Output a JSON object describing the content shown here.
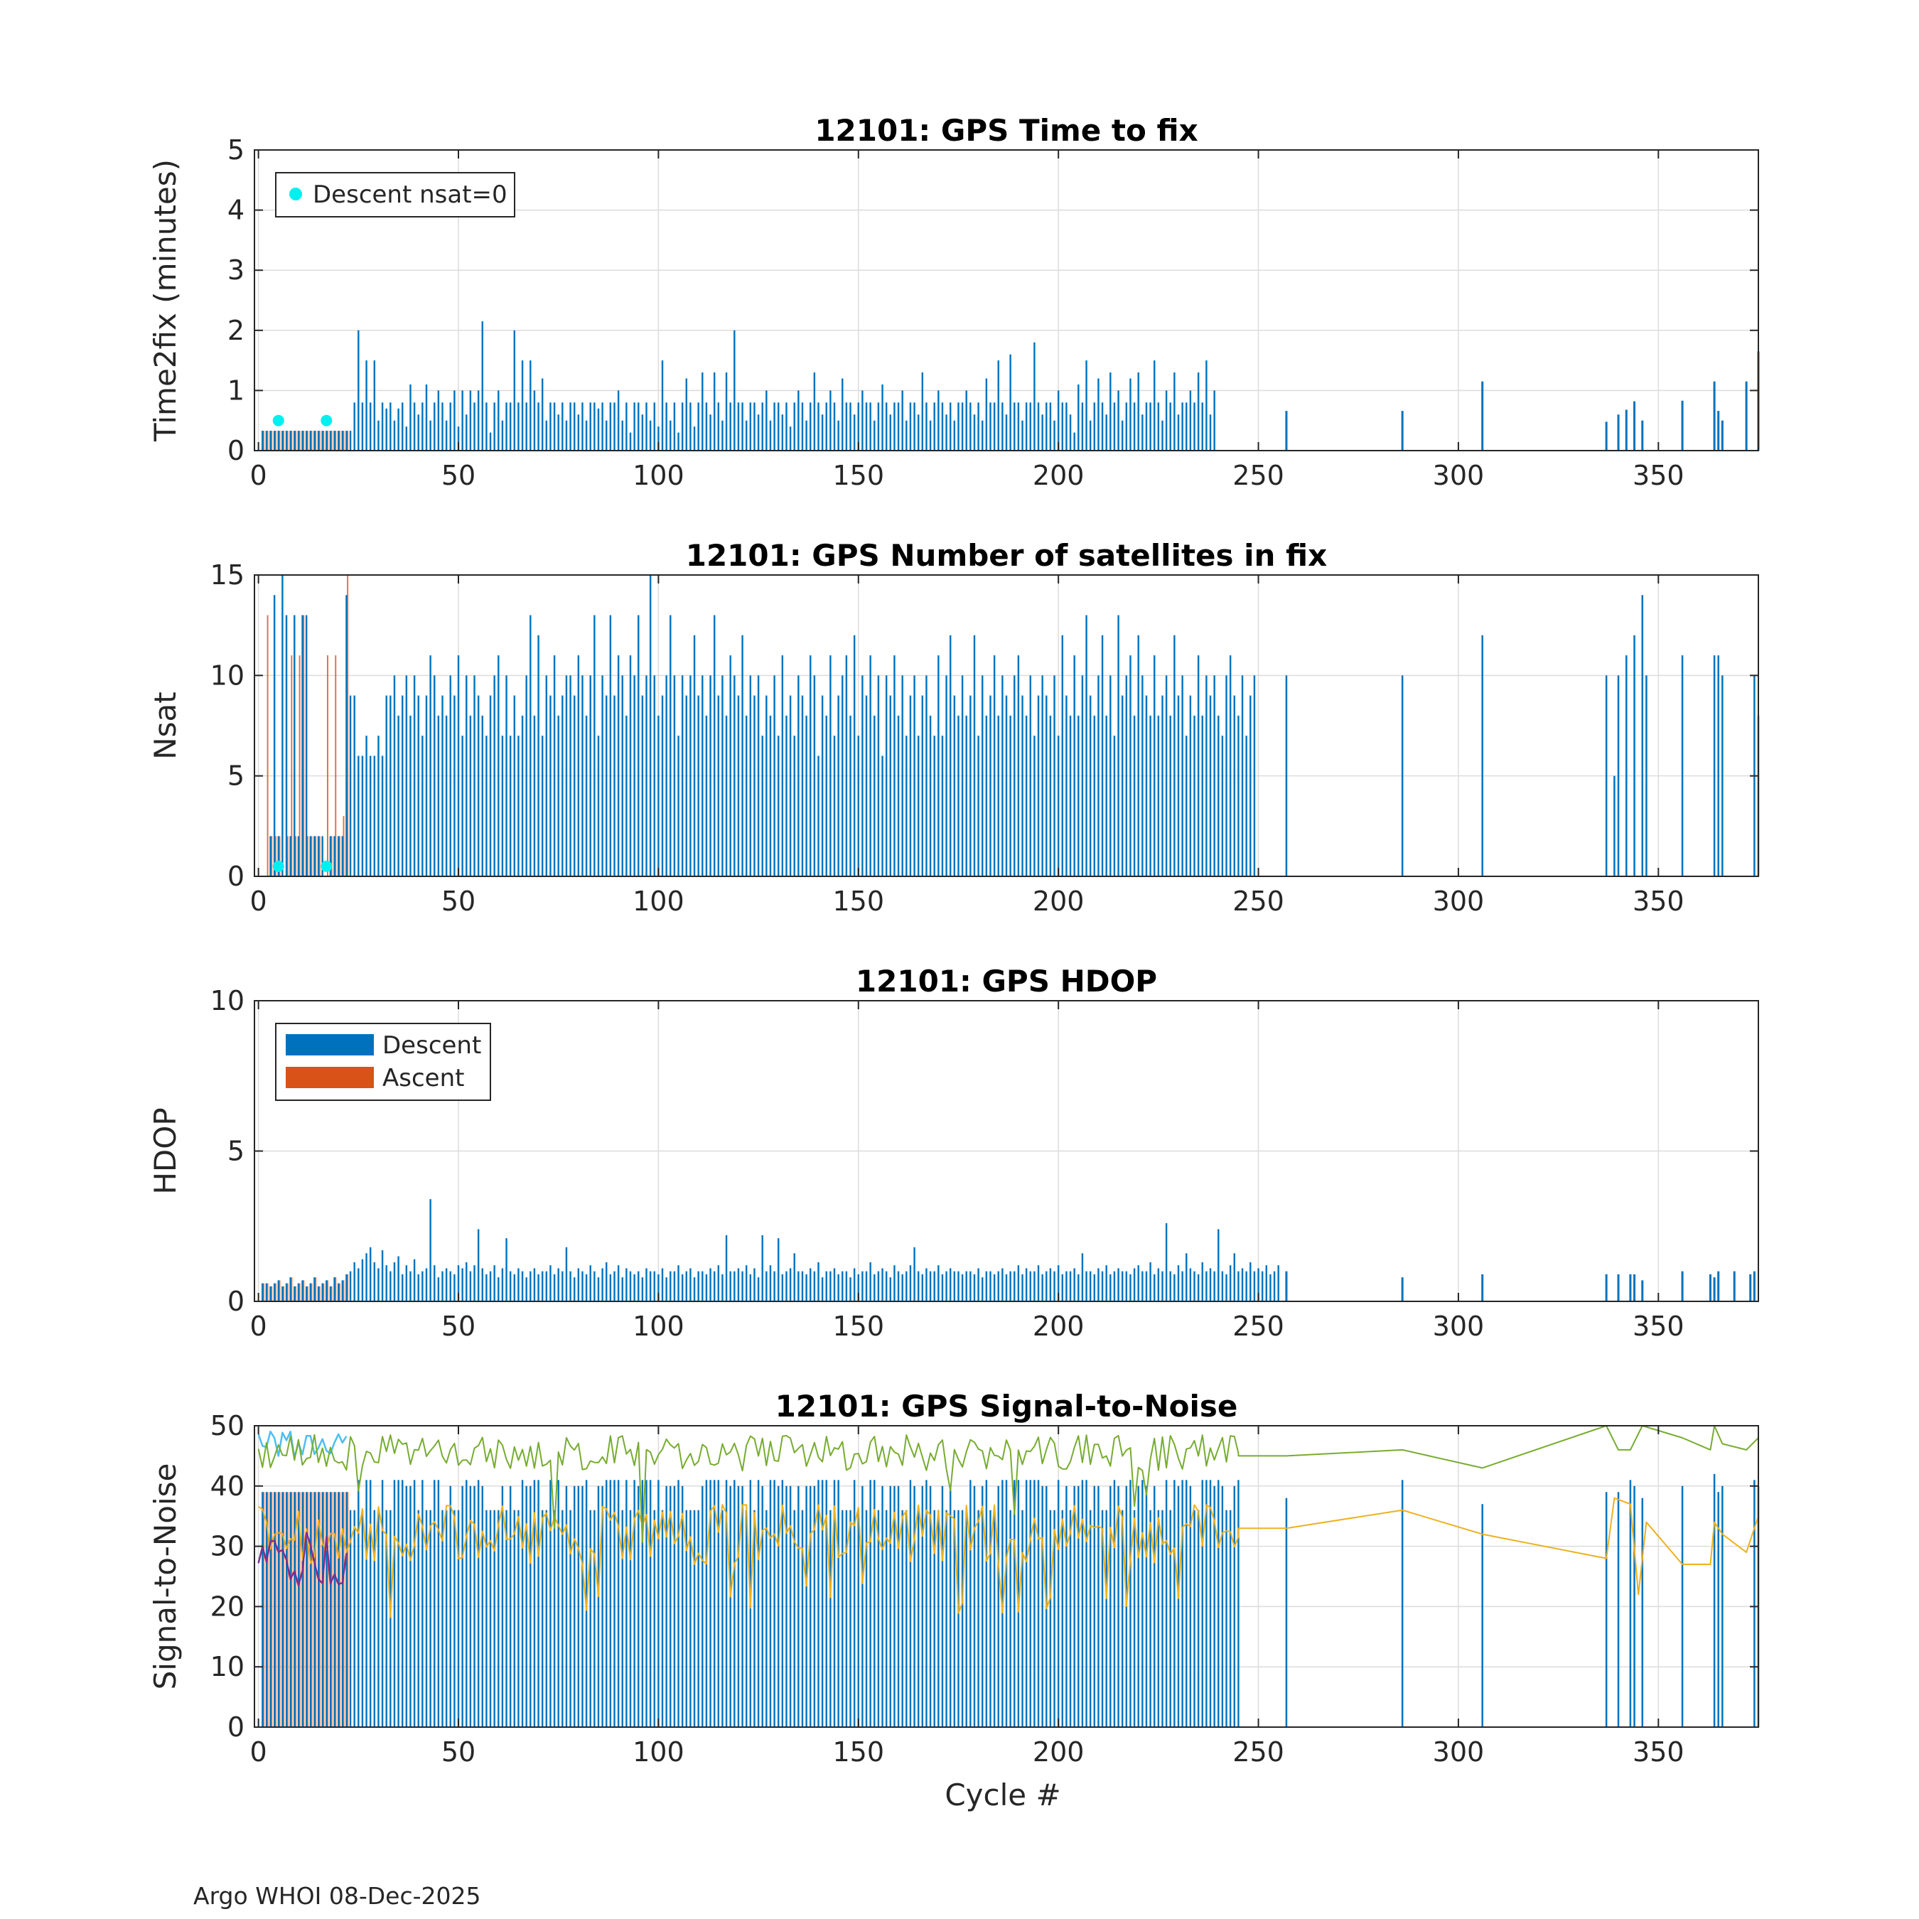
{
  "figure": {
    "footer": "Argo WHOI 08-Dec-2025",
    "xlabel": "Cycle #",
    "xlim": [
      -1,
      375
    ],
    "xticks": [
      0,
      50,
      100,
      150,
      200,
      250,
      300,
      350
    ],
    "colors": {
      "descent": "#0072BD",
      "ascent": "#D95319",
      "cyan": "#00F0F0",
      "snr_green": "#77AC30",
      "snr_yellow": "#EDB120",
      "snr_lightblue": "#4DBEEE",
      "snr_purple": "#7E2F8E",
      "grid": "#DCDCDC",
      "axis": "#262626"
    }
  },
  "chart_data": [
    {
      "id": "time2fix",
      "type": "bar",
      "title": "12101: GPS Time to fix",
      "ylabel": "Time2fix (minutes)",
      "ylim": [
        0,
        5
      ],
      "yticks": [
        0,
        1,
        2,
        3,
        4,
        5
      ],
      "legend": [
        {
          "label": "Descent nsat=0",
          "marker": "dot",
          "color_key": "cyan"
        }
      ],
      "legend_position": "top-left",
      "early_ascent_cycles": [
        1,
        22
      ],
      "early_value": 0.33,
      "descent_values": [
        0.33,
        0.33,
        0.33,
        0.33,
        0.33,
        0.33,
        0.33,
        0.33,
        0.33,
        0.33,
        0.33,
        0.33,
        0.33,
        0.33,
        0.33,
        0.33,
        0.33,
        0.33,
        0.33,
        0.33,
        0.33,
        0.33,
        0.33,
        0.8,
        2.0,
        0.8,
        1.5,
        0.8,
        1.5,
        0.5,
        0.8,
        0.7,
        0.8,
        0.5,
        0.7,
        0.8,
        0.4,
        1.1,
        0.8,
        0.6,
        0.8,
        1.1,
        0.5,
        0.8,
        1.0,
        0.8,
        0.5,
        0.8,
        1.0,
        0.4,
        1.0,
        0.6,
        1.0,
        0.8,
        1.0,
        2.15,
        0.8,
        0.3,
        0.8,
        1.0,
        0.5,
        0.8,
        0.8,
        2.0,
        0.8,
        1.5,
        0.8,
        1.5,
        1.0,
        0.8,
        1.2,
        0.5,
        0.8,
        0.8,
        0.6,
        0.8,
        0.5,
        0.8,
        0.8,
        0.6,
        0.8,
        0.5,
        0.8,
        0.8,
        0.7,
        0.8,
        0.5,
        0.8,
        0.8,
        1.0,
        0.5,
        0.8,
        0.3,
        0.8,
        0.8,
        0.6,
        0.8,
        0.5,
        0.8,
        0.4,
        1.5,
        0.8,
        0.5,
        0.8,
        0.3,
        0.8,
        1.2,
        0.8,
        0.4,
        0.8,
        1.3,
        0.8,
        0.6,
        1.3,
        0.8,
        0.5,
        1.3,
        0.8,
        2.0,
        0.8,
        0.8,
        0.5,
        0.8,
        0.8,
        0.6,
        0.8,
        1.0,
        0.5,
        0.8,
        0.8,
        0.6,
        0.8,
        0.4,
        0.8,
        1.0,
        0.8,
        0.5,
        0.8,
        1.3,
        0.8,
        0.6,
        0.8,
        1.0,
        0.8,
        0.5,
        1.2,
        0.8,
        0.8,
        0.6,
        0.8,
        1.0,
        0.8,
        0.8,
        0.5,
        0.8,
        1.1,
        0.8,
        0.6,
        0.8,
        0.8,
        1.0,
        0.5,
        0.8,
        0.8,
        0.6,
        1.3,
        0.8,
        0.5,
        0.8,
        1.0,
        0.8,
        0.6,
        0.8,
        0.5,
        0.8,
        0.8,
        1.0,
        0.8,
        0.6,
        0.8,
        0.5,
        1.2,
        0.8,
        0.8,
        1.5,
        0.8,
        0.6,
        1.6,
        0.8,
        0.8,
        0.5,
        0.8,
        0.8,
        1.8,
        0.8,
        0.6,
        0.8,
        0.8,
        0.5,
        1.0,
        0.8,
        0.8,
        0.6,
        0.3,
        1.1,
        0.8,
        1.5,
        0.5,
        0.8,
        1.2,
        0.8,
        0.6,
        1.3,
        0.8,
        1.0,
        0.5,
        0.8,
        1.2,
        0.8,
        1.3,
        0.6,
        0.8,
        0.8,
        1.5,
        0.8,
        0.5,
        1.0,
        0.8,
        1.3,
        0.6,
        0.8,
        0.8,
        1.0,
        0.8,
        1.3,
        0.8,
        1.5,
        0.6,
        1.0
      ],
      "late_descent": [
        [
          257,
          0.66
        ],
        [
          286,
          0.66
        ],
        [
          306,
          1.15
        ],
        [
          337,
          0.48
        ],
        [
          340,
          0.6
        ],
        [
          342,
          0.68
        ],
        [
          344,
          0.82
        ],
        [
          346,
          0.5
        ],
        [
          356,
          0.83
        ],
        [
          364,
          1.15
        ],
        [
          365,
          0.66
        ],
        [
          366,
          0.5
        ],
        [
          372,
          1.15
        ],
        [
          375,
          1.65
        ]
      ],
      "markers": [
        [
          5,
          0.5
        ],
        [
          17,
          0.5
        ]
      ]
    },
    {
      "id": "nsat",
      "type": "bar",
      "title": "12101: GPS Number of satellites in fix",
      "ylabel": "Nsat",
      "ylim": [
        0,
        15
      ],
      "yticks": [
        0,
        5,
        10,
        15
      ],
      "early_descent": [
        [
          1,
          0
        ],
        [
          2,
          0
        ],
        [
          3,
          2
        ],
        [
          4,
          14
        ],
        [
          5,
          2
        ],
        [
          6,
          15
        ],
        [
          7,
          13
        ],
        [
          8,
          2
        ],
        [
          9,
          13
        ],
        [
          10,
          2
        ],
        [
          11,
          13
        ],
        [
          12,
          13
        ],
        [
          13,
          2
        ],
        [
          14,
          2
        ],
        [
          15,
          2
        ],
        [
          16,
          2
        ],
        [
          17,
          0
        ],
        [
          18,
          2
        ],
        [
          19,
          2
        ],
        [
          20,
          2
        ],
        [
          21,
          2
        ],
        [
          22,
          14
        ],
        [
          23,
          9
        ]
      ],
      "early_ascent": [
        [
          2,
          13
        ],
        [
          3,
          2
        ],
        [
          4,
          2
        ],
        [
          5,
          2
        ],
        [
          7,
          2
        ],
        [
          8,
          11
        ],
        [
          9,
          2
        ],
        [
          10,
          11
        ],
        [
          11,
          13
        ],
        [
          12,
          2
        ],
        [
          13,
          2
        ],
        [
          14,
          2
        ],
        [
          15,
          2
        ],
        [
          17,
          11
        ],
        [
          18,
          2
        ],
        [
          19,
          11
        ],
        [
          20,
          2
        ],
        [
          21,
          3
        ],
        [
          22,
          15
        ]
      ],
      "descent_values": [
        9,
        6,
        6,
        7,
        6,
        6,
        7,
        6,
        9,
        9,
        10,
        8,
        9,
        10,
        8,
        10,
        9,
        7,
        9,
        11,
        10,
        8,
        9,
        8,
        10,
        9,
        11,
        7,
        10,
        8,
        10,
        9,
        8,
        7,
        9,
        10,
        11,
        7,
        10,
        7,
        9,
        7,
        8,
        10,
        13,
        8,
        12,
        7,
        10,
        9,
        11,
        8,
        9,
        10,
        10,
        9,
        11,
        10,
        8,
        10,
        13,
        7,
        10,
        9,
        13,
        9,
        11,
        10,
        8,
        11,
        10,
        13,
        9,
        10,
        15,
        10,
        8,
        9,
        10,
        13,
        10,
        7,
        10,
        9,
        10,
        12,
        9,
        10,
        8,
        10,
        13,
        9,
        10,
        8,
        11,
        10,
        9,
        12,
        8,
        10,
        9,
        10,
        7,
        9,
        8,
        10,
        7,
        11,
        8,
        9,
        7,
        10,
        9,
        8,
        11,
        10,
        6,
        9,
        8,
        11,
        7,
        9,
        10,
        11,
        8,
        12,
        7,
        10,
        9,
        11,
        8,
        10,
        6,
        10,
        9,
        11,
        8,
        10,
        7,
        9,
        10,
        7,
        9,
        10,
        8,
        7,
        11,
        7,
        10,
        12,
        9,
        8,
        10,
        8,
        9,
        12,
        7,
        10,
        8,
        9,
        11,
        8,
        10,
        9,
        8,
        10,
        11,
        9,
        8,
        10,
        7,
        9,
        10,
        9,
        8,
        10,
        7,
        12,
        9,
        8,
        11,
        8,
        10,
        13,
        9,
        8,
        10,
        12,
        8,
        10,
        7,
        13,
        9,
        10,
        11,
        8,
        12,
        10,
        9,
        8,
        11,
        8,
        9,
        10,
        8,
        12,
        9,
        10,
        7,
        9,
        8,
        11,
        8,
        10,
        9,
        10,
        8,
        7,
        10,
        11,
        9,
        8,
        10,
        7,
        9,
        10
      ],
      "late_descent": [
        [
          257,
          10
        ],
        [
          286,
          10
        ],
        [
          306,
          12
        ],
        [
          337,
          10
        ],
        [
          339,
          5
        ],
        [
          340,
          10
        ],
        [
          342,
          11
        ],
        [
          344,
          12
        ],
        [
          346,
          14
        ],
        [
          347,
          10
        ],
        [
          356,
          11
        ],
        [
          364,
          11
        ],
        [
          365,
          11
        ],
        [
          366,
          10
        ],
        [
          374,
          10
        ],
        [
          375,
          8
        ]
      ],
      "markers": [
        [
          5,
          0.5
        ],
        [
          17,
          0.5
        ]
      ]
    },
    {
      "id": "hdop",
      "type": "bar",
      "title": "12101: GPS HDOP",
      "ylabel": "HDOP",
      "ylim": [
        0,
        10
      ],
      "yticks": [
        0,
        5,
        10
      ],
      "legend": [
        {
          "label": "Descent",
          "marker": "bar",
          "color_key": "descent"
        },
        {
          "label": "Ascent",
          "marker": "bar",
          "color_key": "ascent"
        }
      ],
      "legend_position": "top-left",
      "early_values": [
        0.6,
        0.6,
        0.5,
        0.6,
        0.7,
        0.5,
        0.6,
        0.8,
        0.5,
        0.6,
        0.7,
        0.5,
        0.6,
        0.8,
        0.5,
        0.6,
        0.7,
        0.5,
        0.8,
        0.6,
        0.7,
        0.9
      ],
      "descent_values": [
        1.0,
        1.3,
        1.1,
        1.4,
        1.6,
        1.8,
        1.3,
        1.1,
        1.7,
        1.2,
        1.0,
        1.3,
        1.5,
        0.9,
        1.2,
        1.0,
        1.4,
        0.9,
        1.0,
        1.1,
        3.4,
        1.2,
        0.8,
        1.0,
        1.1,
        1.0,
        0.9,
        1.2,
        1.1,
        1.3,
        1.0,
        1.2,
        2.4,
        1.1,
        0.9,
        1.0,
        1.2,
        0.8,
        1.1,
        2.1,
        1.0,
        0.9,
        1.1,
        1.0,
        0.8,
        1.0,
        1.1,
        0.9,
        1.0,
        1.0,
        1.2,
        0.9,
        1.1,
        1.0,
        1.8,
        1.0,
        0.8,
        1.1,
        1.0,
        0.9,
        1.2,
        1.0,
        0.8,
        1.1,
        1.3,
        0.9,
        1.0,
        1.2,
        0.8,
        1.1,
        1.0,
        0.9,
        1.0,
        0.8,
        1.1,
        1.0,
        1.0,
        0.9,
        1.1,
        0.8,
        1.0,
        1.0,
        1.2,
        0.9,
        1.0,
        1.1,
        0.8,
        1.0,
        1.0,
        0.9,
        1.1,
        1.0,
        1.2,
        0.9,
        2.2,
        1.0,
        1.0,
        1.1,
        1.0,
        1.2,
        0.9,
        1.1,
        0.8,
        2.2,
        1.0,
        1.2,
        1.0,
        2.1,
        0.9,
        1.0,
        1.1,
        1.6,
        1.0,
        1.0,
        0.9,
        1.1,
        1.0,
        1.3,
        0.8,
        1.0,
        1.0,
        1.1,
        0.9,
        1.0,
        1.0,
        0.8,
        1.1,
        0.9,
        1.0,
        1.0,
        1.3,
        0.9,
        1.0,
        1.1,
        1.0,
        0.8,
        1.2,
        1.0,
        0.9,
        1.0,
        1.2,
        1.8,
        1.0,
        0.9,
        1.1,
        1.0,
        1.0,
        1.2,
        0.9,
        1.0,
        1.1,
        1.0,
        1.0,
        0.9,
        1.0,
        1.0,
        0.9,
        1.1,
        0.8,
        1.0,
        1.0,
        0.9,
        1.0,
        1.1,
        0.9,
        1.0,
        1.0,
        1.2,
        0.9,
        1.1,
        1.0,
        1.0,
        1.2,
        0.9,
        1.0,
        1.1,
        1.0,
        1.2,
        0.9,
        1.0,
        1.0,
        1.1,
        0.9,
        1.6,
        1.0,
        1.0,
        0.9,
        1.1,
        1.0,
        1.2,
        0.9,
        1.0,
        1.1,
        1.0,
        1.0,
        0.9,
        1.1,
        1.2,
        1.0,
        1.0,
        1.3,
        0.9,
        1.1,
        1.0,
        2.6,
        1.0,
        0.9,
        1.2,
        1.0,
        1.6,
        1.1,
        1.0,
        0.9,
        1.3,
        1.0,
        1.1,
        1.0,
        2.4,
        1.0,
        0.9,
        1.2,
        1.6,
        1.0,
        1.1,
        1.0,
        1.3,
        1.0,
        1.1,
        1.0,
        1.2,
        0.9,
        1.0,
        1.2
      ],
      "late_descent": [
        [
          257,
          1.0
        ],
        [
          286,
          0.8
        ],
        [
          306,
          0.9
        ],
        [
          337,
          0.9
        ],
        [
          340,
          0.9
        ],
        [
          343,
          0.9
        ],
        [
          344,
          0.9
        ],
        [
          346,
          0.7
        ],
        [
          356,
          1.0
        ],
        [
          363,
          0.9
        ],
        [
          364,
          0.8
        ],
        [
          365,
          1.0
        ],
        [
          369,
          1.0
        ],
        [
          373,
          0.9
        ],
        [
          374,
          1.0
        ]
      ]
    },
    {
      "id": "snr",
      "type": "bar",
      "title": "12101: GPS Signal-to-Noise",
      "ylabel": "Signal-to-Noise",
      "xlabel_key": "figure.xlabel",
      "ylim": [
        0,
        50
      ],
      "yticks": [
        0,
        10,
        20,
        30,
        40,
        50
      ],
      "bar_levels": [
        36,
        40,
        41
      ],
      "late_bars": [
        [
          257,
          38
        ],
        [
          286,
          41
        ],
        [
          306,
          37
        ],
        [
          337,
          39
        ],
        [
          340,
          39
        ],
        [
          343,
          41
        ],
        [
          344,
          40
        ],
        [
          346,
          38
        ],
        [
          356,
          40
        ],
        [
          364,
          42
        ],
        [
          365,
          39
        ],
        [
          366,
          40
        ],
        [
          374,
          41
        ],
        [
          375,
          40
        ]
      ],
      "green_line_late": [
        [
          245,
          45
        ],
        [
          257,
          45
        ],
        [
          286,
          46
        ],
        [
          306,
          43
        ],
        [
          337,
          50
        ],
        [
          340,
          46
        ],
        [
          343,
          46
        ],
        [
          346,
          50
        ],
        [
          356,
          48
        ],
        [
          363,
          46
        ],
        [
          364,
          50
        ],
        [
          366,
          47
        ],
        [
          372,
          46
        ],
        [
          375,
          48
        ]
      ],
      "yellow_line_late": [
        [
          245,
          33
        ],
        [
          257,
          33
        ],
        [
          286,
          36
        ],
        [
          306,
          32
        ],
        [
          337,
          28
        ],
        [
          339,
          38
        ],
        [
          343,
          37
        ],
        [
          345,
          22
        ],
        [
          347,
          34
        ],
        [
          356,
          27
        ],
        [
          363,
          27
        ],
        [
          364,
          34
        ],
        [
          366,
          32
        ],
        [
          372,
          29
        ],
        [
          375,
          35
        ]
      ]
    }
  ]
}
